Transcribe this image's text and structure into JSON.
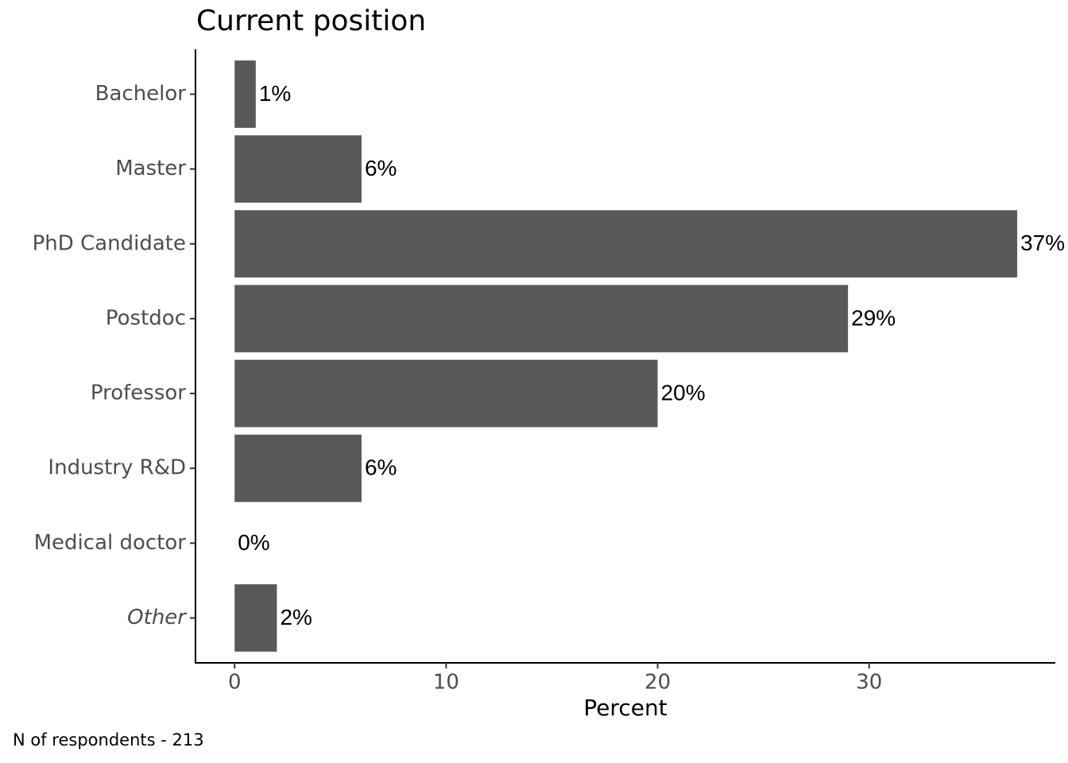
{
  "chart_data": {
    "type": "bar",
    "orientation": "horizontal",
    "title": "Current position",
    "categories": [
      "Bachelor",
      "Master",
      "PhD Candidate",
      "Postdoc",
      "Professor",
      "Industry R&D",
      "Medical doctor",
      "Other"
    ],
    "values": [
      1,
      6,
      37,
      29,
      20,
      6,
      0,
      2
    ],
    "value_labels": [
      "1%",
      "6%",
      "37%",
      "29%",
      "20%",
      "6%",
      "0%",
      "2%"
    ],
    "color": "#595959",
    "xlim": [
      -1.85,
      38.8
    ],
    "xticks": [
      0,
      10,
      20,
      30
    ],
    "x_label": "Percent",
    "caption": "N of respondents - 213",
    "grid": false
  }
}
